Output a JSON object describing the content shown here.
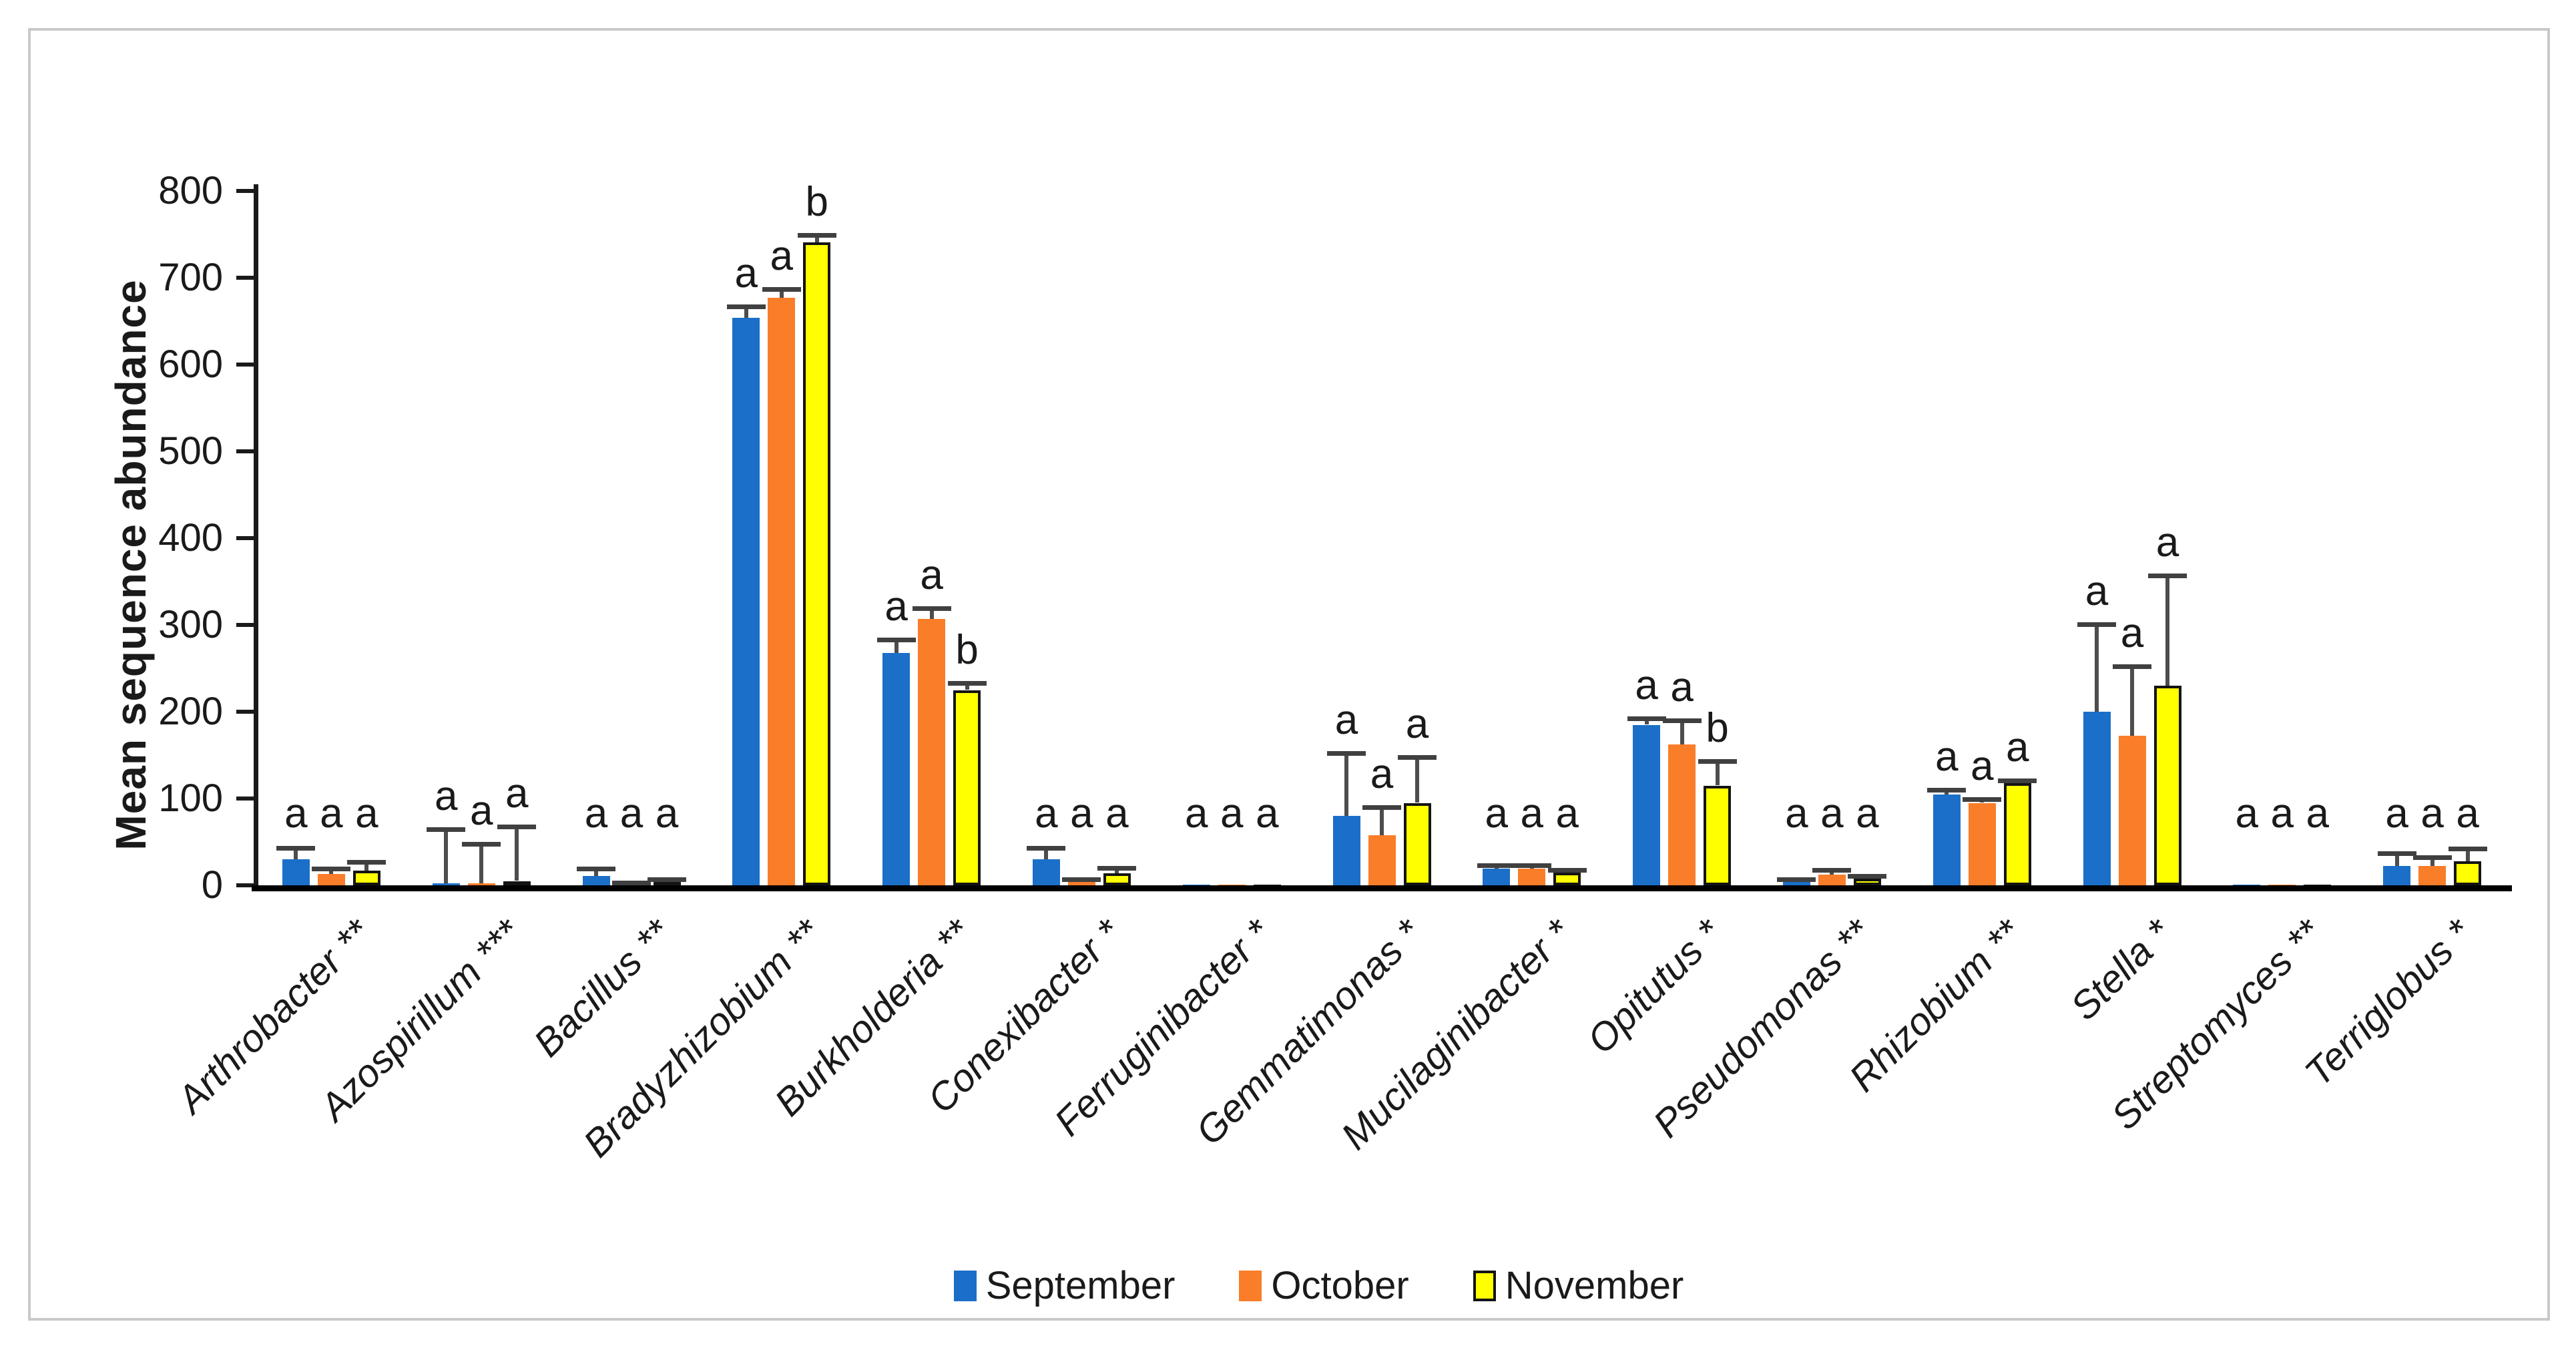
{
  "figure": {
    "kind": "grouped-bar-chart-with-error-bars"
  },
  "y_axis": {
    "label": "Mean sequence abundance",
    "min": 0,
    "max": 800
  },
  "legend": [
    {
      "label": "September",
      "color": "#1B6FC8"
    },
    {
      "label": "October",
      "color": "#FA7D29"
    },
    {
      "label": "November",
      "color": "#FFFF00",
      "border": "#141414"
    }
  ],
  "colors": {
    "september": "#1B6FC8",
    "october": "#FA7D29",
    "november": "#FFFF00",
    "november_border": "#141414",
    "error_bar": "#4d4d4d",
    "axis": "#000000",
    "frame_border": "#c9c9c9"
  },
  "chart_data": {
    "type": "bar",
    "title": "",
    "xlabel": "",
    "ylabel": "Mean sequence abundance",
    "ylim": [
      0,
      800
    ],
    "yticks": [
      0,
      100,
      200,
      300,
      400,
      500,
      600,
      700,
      800
    ],
    "grid": false,
    "legend_position": "bottom",
    "categories": [
      "Arthrobacter **",
      "Azospirillum ***",
      "Bacillus **",
      "Bradyzhizobium **",
      "Burkholderia **",
      "Conexibacter *",
      "Ferruginibacter *",
      "Gemmatimonas *",
      "Mucilaginibacter *",
      "Opitutus *",
      "Pseudomonas **",
      "Rhizobium **",
      "Stella *",
      "Streptomyces **",
      "Terriglobus *"
    ],
    "series": [
      {
        "name": "September",
        "color": "#1B6FC8",
        "values": [
          30,
          2,
          11,
          654,
          268,
          30,
          1,
          80,
          19,
          185,
          5,
          105,
          200,
          1,
          22
        ],
        "errors": [
          13,
          63,
          8,
          13,
          15,
          13,
          0,
          72,
          4,
          7,
          2,
          5,
          101,
          0,
          15
        ]
      },
      {
        "name": "October",
        "color": "#FA7D29",
        "values": [
          13,
          2,
          2,
          677,
          307,
          5,
          1,
          58,
          19,
          162,
          12,
          95,
          172,
          1,
          22
        ],
        "errors": [
          6,
          46,
          1,
          10,
          12,
          2,
          0,
          32,
          4,
          28,
          6,
          4,
          80,
          0,
          10
        ]
      },
      {
        "name": "November",
        "color": "#FFFF00",
        "values": [
          17,
          5,
          5,
          741,
          225,
          14,
          1,
          95,
          15,
          115,
          8,
          118,
          230,
          1,
          28
        ],
        "errors": [
          10,
          63,
          2,
          8,
          8,
          6,
          0,
          53,
          3,
          28,
          3,
          3,
          127,
          0,
          14
        ]
      }
    ],
    "significance_letters": [
      [
        "a",
        "a",
        "a"
      ],
      [
        "a",
        "a",
        "a"
      ],
      [
        "a",
        "a",
        "a"
      ],
      [
        "a",
        "a",
        "b"
      ],
      [
        "a",
        "a",
        "b"
      ],
      [
        "a",
        "a",
        "a"
      ],
      [
        "a",
        "a",
        "a"
      ],
      [
        "a",
        "a",
        "a"
      ],
      [
        "a",
        "a",
        "a"
      ],
      [
        "a",
        "a",
        "b"
      ],
      [
        "a",
        "a",
        "a"
      ],
      [
        "a",
        "a",
        "a"
      ],
      [
        "a",
        "a",
        "a"
      ],
      [
        "a",
        "a",
        "a"
      ],
      [
        "a",
        "a",
        "a"
      ]
    ]
  }
}
